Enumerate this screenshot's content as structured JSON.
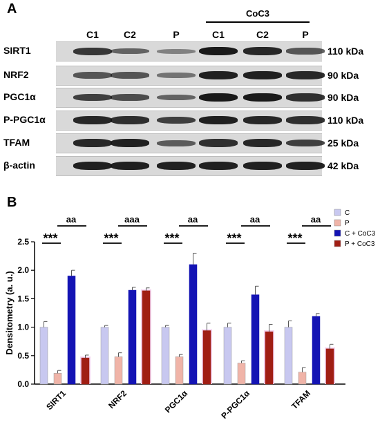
{
  "panel_a": {
    "letter": "A",
    "group_label": "CoC3",
    "lanes": [
      "C1",
      "C2",
      "P",
      "C1",
      "C2",
      "P"
    ],
    "rows": [
      {
        "name": "SIRT1",
        "kda": "110 kDa",
        "intensity": [
          0.75,
          0.45,
          0.25,
          0.95,
          0.85,
          0.55
        ]
      },
      {
        "name": "NRF2",
        "kda": "90 kDa",
        "intensity": [
          0.55,
          0.55,
          0.35,
          0.9,
          0.9,
          0.85
        ]
      },
      {
        "name": "PGC1α",
        "kda": "90 kDa",
        "intensity": [
          0.7,
          0.6,
          0.45,
          0.95,
          0.95,
          0.8
        ]
      },
      {
        "name": "P-PGC1α",
        "kda": "110 kDa",
        "intensity": [
          0.85,
          0.8,
          0.7,
          0.9,
          0.85,
          0.8
        ]
      },
      {
        "name": "TFAM",
        "kda": "25 kDa",
        "intensity": [
          0.85,
          0.9,
          0.5,
          0.8,
          0.85,
          0.7
        ]
      },
      {
        "name": "β-actin",
        "kda": "42 kDa",
        "intensity": [
          0.9,
          0.9,
          0.9,
          0.9,
          0.9,
          0.9
        ]
      }
    ]
  },
  "panel_b": {
    "letter": "B"
  },
  "chart_data": {
    "type": "bar",
    "categories": [
      "SIRT1",
      "NRF2",
      "PGC1α",
      "P-PGC1α",
      "TFAM"
    ],
    "series": [
      {
        "name": "C",
        "color": "#c8c8f0",
        "values": [
          1.0,
          1.0,
          1.0,
          1.0,
          1.0
        ],
        "errors": [
          0.1,
          0.03,
          0.03,
          0.07,
          0.11
        ]
      },
      {
        "name": "P",
        "color": "#f0b4a8",
        "values": [
          0.19,
          0.48,
          0.48,
          0.37,
          0.21
        ],
        "errors": [
          0.05,
          0.07,
          0.04,
          0.04,
          0.08
        ]
      },
      {
        "name": "C + CoC3",
        "color": "#1414b4",
        "values": [
          1.9,
          1.65,
          2.1,
          1.57,
          1.19
        ],
        "errors": [
          0.1,
          0.05,
          0.2,
          0.15,
          0.05
        ]
      },
      {
        "name": "P + CoC3",
        "color": "#a01e14",
        "values": [
          0.46,
          1.64,
          0.94,
          0.92,
          0.62
        ],
        "errors": [
          0.05,
          0.05,
          0.13,
          0.13,
          0.08
        ]
      }
    ],
    "ylabel": "Densitometry (a. u.)",
    "ylim": [
      0.0,
      2.5
    ],
    "yticks": [
      "0.0",
      "0.5",
      "1.0",
      "1.5",
      "2.0",
      "2.5"
    ],
    "significance": [
      {
        "category": 0,
        "left": "***",
        "right": "aa"
      },
      {
        "category": 1,
        "left": "***",
        "right": "aaa"
      },
      {
        "category": 2,
        "left": "***",
        "right": "aa"
      },
      {
        "category": 3,
        "left": "***",
        "right": "aa"
      },
      {
        "category": 4,
        "left": "***",
        "right": "aa"
      }
    ],
    "legend_position": "top-right",
    "grid": false
  }
}
